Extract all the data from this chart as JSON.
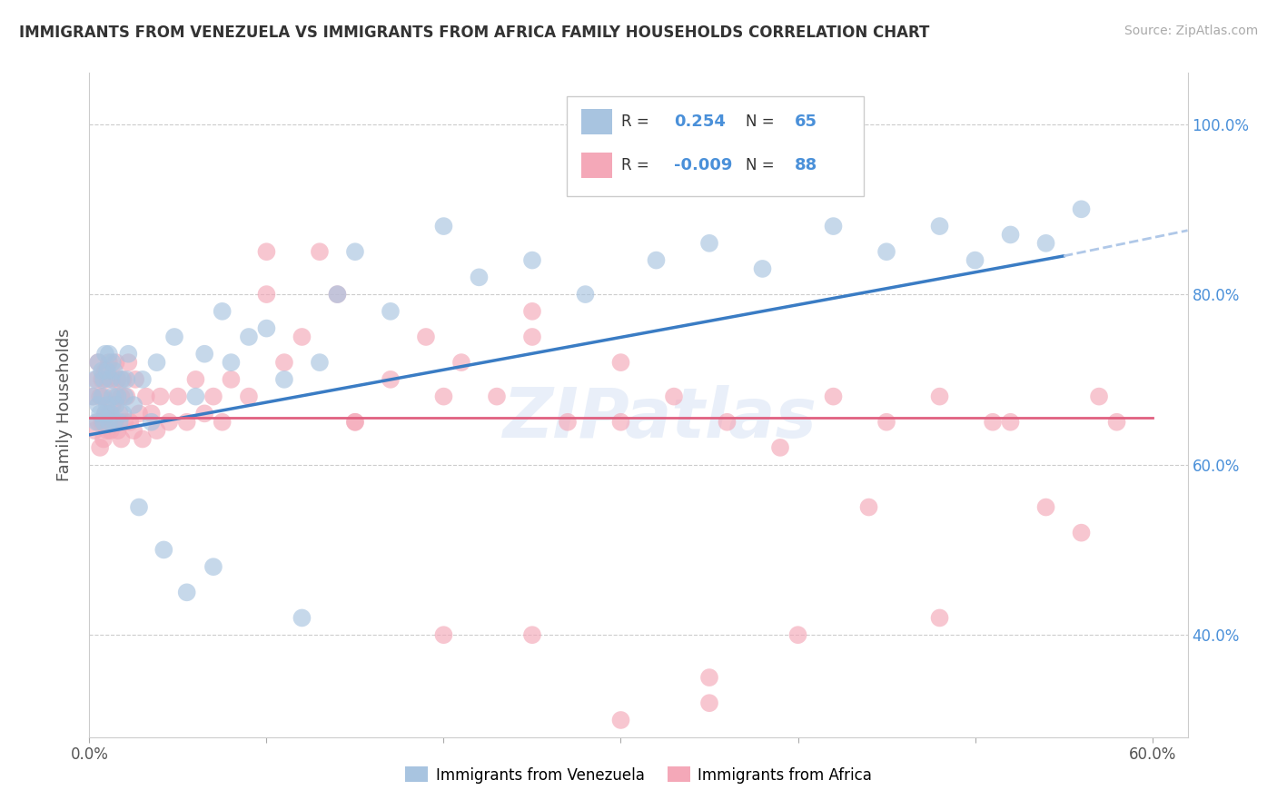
{
  "title": "IMMIGRANTS FROM VENEZUELA VS IMMIGRANTS FROM AFRICA FAMILY HOUSEHOLDS CORRELATION CHART",
  "source": "Source: ZipAtlas.com",
  "ylabel": "Family Households",
  "xlim": [
    0.0,
    0.62
  ],
  "ylim": [
    0.28,
    1.06
  ],
  "xticks": [
    0.0,
    0.1,
    0.2,
    0.3,
    0.4,
    0.5,
    0.6
  ],
  "xticklabels_show": [
    "0.0%",
    "",
    "",
    "",
    "",
    "",
    "60.0%"
  ],
  "yticks": [
    0.4,
    0.6,
    0.8,
    1.0
  ],
  "yticklabels": [
    "40.0%",
    "60.0%",
    "80.0%",
    "100.0%"
  ],
  "color_venezuela": "#a8c4e0",
  "color_africa": "#f4a8b8",
  "color_trend_venezuela": "#3a7cc4",
  "color_trend_africa": "#e06080",
  "color_trend_ext": "#b0c8e8",
  "watermark": "ZIPatlas",
  "background_color": "#ffffff",
  "venezuela_x": [
    0.002,
    0.003,
    0.004,
    0.005,
    0.005,
    0.006,
    0.007,
    0.007,
    0.008,
    0.008,
    0.009,
    0.009,
    0.01,
    0.01,
    0.011,
    0.011,
    0.012,
    0.012,
    0.013,
    0.013,
    0.014,
    0.014,
    0.015,
    0.016,
    0.017,
    0.018,
    0.019,
    0.02,
    0.021,
    0.022,
    0.025,
    0.028,
    0.03,
    0.035,
    0.038,
    0.042,
    0.048,
    0.055,
    0.06,
    0.065,
    0.07,
    0.075,
    0.08,
    0.09,
    0.1,
    0.11,
    0.12,
    0.13,
    0.14,
    0.15,
    0.17,
    0.2,
    0.22,
    0.25,
    0.28,
    0.32,
    0.35,
    0.38,
    0.42,
    0.45,
    0.48,
    0.5,
    0.52,
    0.54,
    0.56
  ],
  "venezuela_y": [
    0.68,
    0.7,
    0.65,
    0.72,
    0.67,
    0.66,
    0.68,
    0.71,
    0.65,
    0.7,
    0.66,
    0.73,
    0.67,
    0.71,
    0.65,
    0.73,
    0.66,
    0.7,
    0.68,
    0.72,
    0.65,
    0.71,
    0.67,
    0.68,
    0.65,
    0.7,
    0.66,
    0.68,
    0.7,
    0.73,
    0.67,
    0.55,
    0.7,
    0.65,
    0.72,
    0.5,
    0.75,
    0.45,
    0.68,
    0.73,
    0.48,
    0.78,
    0.72,
    0.75,
    0.76,
    0.7,
    0.42,
    0.72,
    0.8,
    0.85,
    0.78,
    0.88,
    0.82,
    0.84,
    0.8,
    0.84,
    0.86,
    0.83,
    0.88,
    0.85,
    0.88,
    0.84,
    0.87,
    0.86,
    0.9
  ],
  "africa_x": [
    0.002,
    0.003,
    0.004,
    0.005,
    0.005,
    0.006,
    0.006,
    0.007,
    0.007,
    0.008,
    0.008,
    0.009,
    0.009,
    0.01,
    0.01,
    0.011,
    0.011,
    0.012,
    0.013,
    0.013,
    0.014,
    0.015,
    0.015,
    0.016,
    0.016,
    0.017,
    0.018,
    0.018,
    0.019,
    0.02,
    0.021,
    0.022,
    0.023,
    0.025,
    0.026,
    0.028,
    0.03,
    0.032,
    0.035,
    0.038,
    0.04,
    0.045,
    0.05,
    0.055,
    0.06,
    0.065,
    0.07,
    0.075,
    0.08,
    0.09,
    0.1,
    0.11,
    0.12,
    0.13,
    0.14,
    0.15,
    0.17,
    0.19,
    0.21,
    0.23,
    0.25,
    0.27,
    0.3,
    0.33,
    0.36,
    0.39,
    0.42,
    0.45,
    0.48,
    0.51,
    0.54,
    0.57,
    0.1,
    0.15,
    0.2,
    0.25,
    0.3,
    0.35,
    0.2,
    0.25,
    0.3,
    0.35,
    0.4,
    0.44,
    0.48,
    0.52,
    0.56,
    0.58
  ],
  "africa_y": [
    0.68,
    0.64,
    0.7,
    0.65,
    0.72,
    0.62,
    0.68,
    0.65,
    0.7,
    0.63,
    0.68,
    0.66,
    0.71,
    0.64,
    0.7,
    0.66,
    0.72,
    0.64,
    0.67,
    0.7,
    0.65,
    0.68,
    0.72,
    0.64,
    0.7,
    0.66,
    0.68,
    0.63,
    0.7,
    0.65,
    0.68,
    0.72,
    0.65,
    0.64,
    0.7,
    0.66,
    0.63,
    0.68,
    0.66,
    0.64,
    0.68,
    0.65,
    0.68,
    0.65,
    0.7,
    0.66,
    0.68,
    0.65,
    0.7,
    0.68,
    0.8,
    0.72,
    0.75,
    0.85,
    0.8,
    0.65,
    0.7,
    0.75,
    0.72,
    0.68,
    0.78,
    0.65,
    0.72,
    0.68,
    0.65,
    0.62,
    0.68,
    0.65,
    0.68,
    0.65,
    0.55,
    0.68,
    0.85,
    0.65,
    0.68,
    0.75,
    0.65,
    0.35,
    0.4,
    0.4,
    0.3,
    0.32,
    0.4,
    0.55,
    0.42,
    0.65,
    0.52,
    0.65
  ],
  "trend_venezuela_x0": 0.0,
  "trend_venezuela_x1": 0.55,
  "trend_venezuela_y0": 0.635,
  "trend_venezuela_y1": 0.845,
  "trend_africa_x0": 0.0,
  "trend_africa_x1": 0.6,
  "trend_africa_y0": 0.655,
  "trend_africa_y1": 0.655,
  "trend_ext_x0": 0.55,
  "trend_ext_x1": 0.62,
  "trend_ext_y0": 0.845,
  "trend_ext_y1": 0.875
}
